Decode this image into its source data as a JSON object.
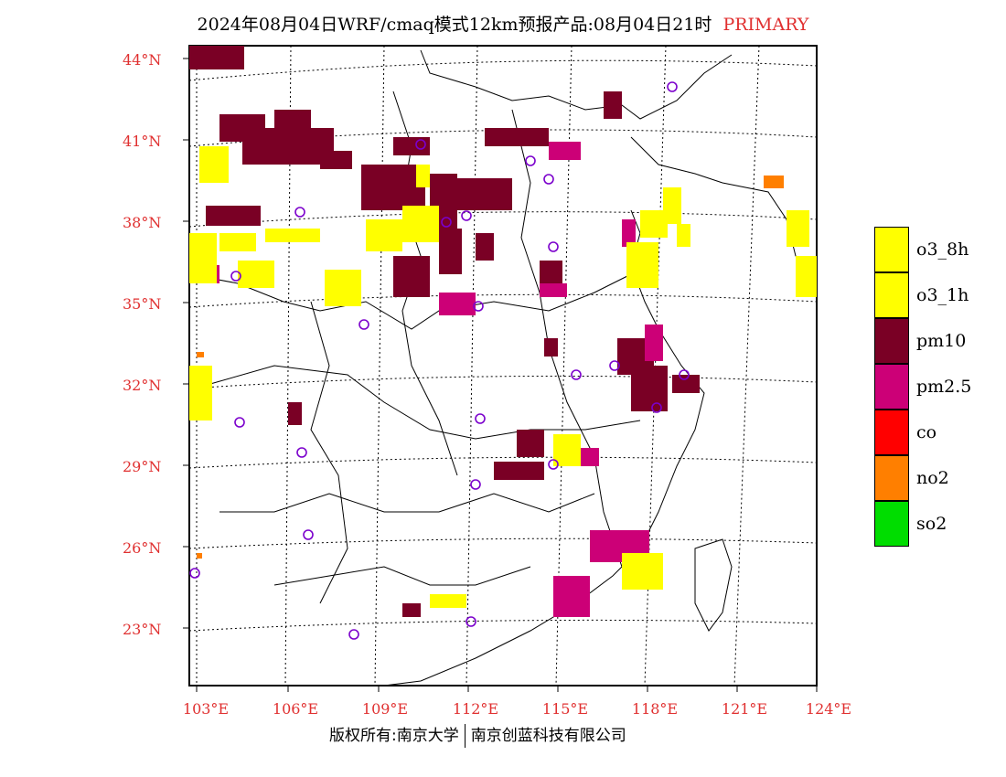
{
  "title": {
    "text": "2024年08月04日WRF/cmaq模式12km预报产品:08月04日21时",
    "tag": "PRIMARY",
    "tag_color": "#e03030"
  },
  "map": {
    "lat_labels": [
      "44°N",
      "41°N",
      "38°N",
      "35°N",
      "32°N",
      "29°N",
      "26°N",
      "23°N"
    ],
    "lon_labels": [
      "103°E",
      "106°E",
      "109°E",
      "112°E",
      "115°E",
      "118°E",
      "121°E",
      "124°E"
    ],
    "label_color": "#e03030"
  },
  "legend": {
    "items": [
      {
        "label": "o3_8h",
        "color": "#ffff00"
      },
      {
        "label": "o3_1h",
        "color": "#ffff00"
      },
      {
        "label": "pm10",
        "color": "#7a0025"
      },
      {
        "label": "pm2.5",
        "color": "#cc0077"
      },
      {
        "label": "co",
        "color": "#ff0000"
      },
      {
        "label": "no2",
        "color": "#ff7f00"
      },
      {
        "label": "so2",
        "color": "#00dd00"
      }
    ]
  },
  "footer": {
    "left": "版权所有:南京大学",
    "right": "南京创蓝科技有限公司"
  }
}
